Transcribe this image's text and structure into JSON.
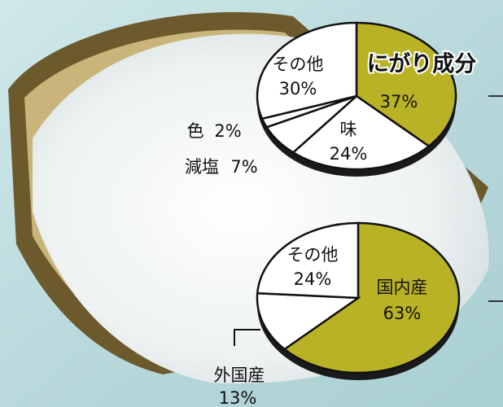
{
  "chart_data": [
    {
      "type": "pie",
      "categories": [
        "にがり成分",
        "味",
        "減塩",
        "色",
        "その他"
      ],
      "values": [
        37,
        24,
        7,
        2,
        30
      ],
      "value_labels": [
        "37%",
        "24%",
        "7%",
        "2%",
        "30%"
      ],
      "colors": [
        "#b9b224",
        "#ffffff",
        "#ffffff",
        "#ffffff",
        "#ffffff"
      ]
    },
    {
      "type": "pie",
      "categories": [
        "国内産",
        "外国産",
        "その他"
      ],
      "values": [
        63,
        13,
        24
      ],
      "value_labels": [
        "63%",
        "13%",
        "24%"
      ],
      "colors": [
        "#b9b224",
        "#ffffff",
        "#ffffff"
      ]
    }
  ]
}
